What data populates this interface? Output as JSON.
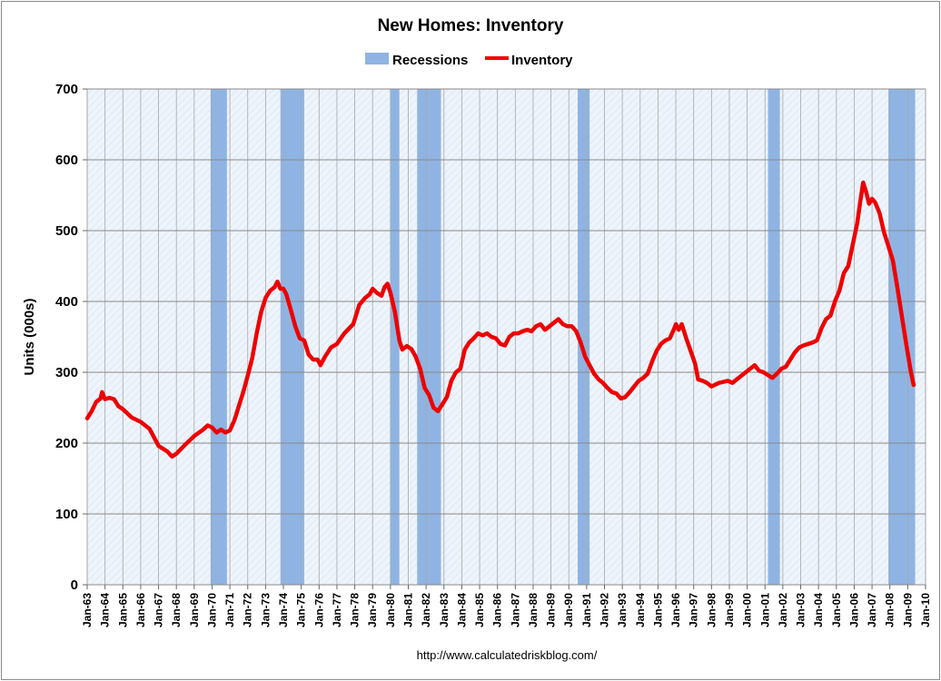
{
  "chart_data": {
    "type": "line",
    "title": "New Homes: Inventory",
    "ylabel": "Units (000s)",
    "xlabel": "",
    "source": "http://www.calculatedriskblog.com/",
    "ylim": [
      0,
      700
    ],
    "yticks": [
      0,
      100,
      200,
      300,
      400,
      500,
      600,
      700
    ],
    "x_start_year": 1963,
    "x_end_year": 2010,
    "xtick_labels": [
      "Jan-63",
      "Jan-64",
      "Jan-65",
      "Jan-66",
      "Jan-67",
      "Jan-68",
      "Jan-69",
      "Jan-70",
      "Jan-71",
      "Jan-72",
      "Jan-73",
      "Jan-74",
      "Jan-75",
      "Jan-76",
      "Jan-77",
      "Jan-78",
      "Jan-79",
      "Jan-80",
      "Jan-81",
      "Jan-82",
      "Jan-83",
      "Jan-84",
      "Jan-85",
      "Jan-86",
      "Jan-87",
      "Jan-88",
      "Jan-89",
      "Jan-90",
      "Jan-91",
      "Jan-92",
      "Jan-93",
      "Jan-94",
      "Jan-95",
      "Jan-96",
      "Jan-97",
      "Jan-98",
      "Jan-99",
      "Jan-00",
      "Jan-01",
      "Jan-02",
      "Jan-03",
      "Jan-04",
      "Jan-05",
      "Jan-06",
      "Jan-07",
      "Jan-08",
      "Jan-09",
      "Jan-10"
    ],
    "grid": true,
    "legend": {
      "placement": "top-center",
      "entries": [
        "Recessions",
        "Inventory"
      ]
    },
    "colors": {
      "inventory": "#ee0000",
      "recession": "#8fb4e3",
      "plot_bg": "#eef4fb",
      "grid": "#a8a8a8"
    },
    "recessions": [
      {
        "start": "1969-12",
        "end": "1970-11"
      },
      {
        "start": "1973-11",
        "end": "1975-03"
      },
      {
        "start": "1980-01",
        "end": "1980-07"
      },
      {
        "start": "1981-07",
        "end": "1982-11"
      },
      {
        "start": "1990-07",
        "end": "1991-03"
      },
      {
        "start": "2001-03",
        "end": "2001-11"
      },
      {
        "start": "2007-12",
        "end": "2009-06"
      }
    ],
    "series": [
      {
        "name": "Inventory",
        "points": [
          [
            "1963-01",
            235
          ],
          [
            "1963-04",
            245
          ],
          [
            "1963-07",
            258
          ],
          [
            "1963-10",
            263
          ],
          [
            "1963-11",
            272
          ],
          [
            "1964-01",
            262
          ],
          [
            "1964-04",
            264
          ],
          [
            "1964-07",
            262
          ],
          [
            "1964-10",
            252
          ],
          [
            "1965-01",
            248
          ],
          [
            "1965-07",
            236
          ],
          [
            "1966-01",
            230
          ],
          [
            "1966-07",
            220
          ],
          [
            "1967-01",
            196
          ],
          [
            "1967-04",
            192
          ],
          [
            "1967-07",
            188
          ],
          [
            "1967-10",
            181
          ],
          [
            "1968-01",
            185
          ],
          [
            "1968-07",
            198
          ],
          [
            "1969-01",
            210
          ],
          [
            "1969-07",
            219
          ],
          [
            "1969-10",
            225
          ],
          [
            "1970-01",
            222
          ],
          [
            "1970-04",
            215
          ],
          [
            "1970-07",
            219
          ],
          [
            "1970-10",
            215
          ],
          [
            "1971-01",
            218
          ],
          [
            "1971-04",
            232
          ],
          [
            "1971-07",
            252
          ],
          [
            "1971-10",
            272
          ],
          [
            "1972-01",
            295
          ],
          [
            "1972-04",
            320
          ],
          [
            "1972-07",
            355
          ],
          [
            "1972-10",
            385
          ],
          [
            "1973-01",
            405
          ],
          [
            "1973-04",
            415
          ],
          [
            "1973-07",
            420
          ],
          [
            "1973-09",
            428
          ],
          [
            "1973-11",
            418
          ],
          [
            "1974-01",
            418
          ],
          [
            "1974-03",
            410
          ],
          [
            "1974-06",
            388
          ],
          [
            "1974-09",
            365
          ],
          [
            "1974-12",
            348
          ],
          [
            "1975-03",
            345
          ],
          [
            "1975-06",
            325
          ],
          [
            "1975-09",
            318
          ],
          [
            "1975-12",
            318
          ],
          [
            "1976-02",
            310
          ],
          [
            "1976-05",
            322
          ],
          [
            "1976-09",
            335
          ],
          [
            "1977-01",
            340
          ],
          [
            "1977-06",
            355
          ],
          [
            "1977-12",
            368
          ],
          [
            "1978-04",
            395
          ],
          [
            "1978-08",
            405
          ],
          [
            "1978-11",
            410
          ],
          [
            "1979-01",
            418
          ],
          [
            "1979-04",
            412
          ],
          [
            "1979-07",
            408
          ],
          [
            "1979-09",
            420
          ],
          [
            "1979-11",
            425
          ],
          [
            "1980-01",
            412
          ],
          [
            "1980-04",
            385
          ],
          [
            "1980-07",
            345
          ],
          [
            "1980-09",
            332
          ],
          [
            "1980-12",
            337
          ],
          [
            "1981-03",
            333
          ],
          [
            "1981-06",
            322
          ],
          [
            "1981-09",
            305
          ],
          [
            "1981-12",
            278
          ],
          [
            "1982-03",
            268
          ],
          [
            "1982-06",
            250
          ],
          [
            "1982-09",
            245
          ],
          [
            "1982-12",
            255
          ],
          [
            "1983-03",
            265
          ],
          [
            "1983-06",
            288
          ],
          [
            "1983-09",
            300
          ],
          [
            "1983-12",
            305
          ],
          [
            "1984-03",
            332
          ],
          [
            "1984-06",
            342
          ],
          [
            "1984-09",
            348
          ],
          [
            "1984-12",
            355
          ],
          [
            "1985-03",
            352
          ],
          [
            "1985-06",
            355
          ],
          [
            "1985-09",
            350
          ],
          [
            "1985-12",
            348
          ],
          [
            "1986-03",
            340
          ],
          [
            "1986-06",
            338
          ],
          [
            "1986-09",
            350
          ],
          [
            "1986-12",
            355
          ],
          [
            "1987-03",
            355
          ],
          [
            "1987-06",
            358
          ],
          [
            "1987-09",
            360
          ],
          [
            "1987-12",
            358
          ],
          [
            "1988-03",
            365
          ],
          [
            "1988-06",
            368
          ],
          [
            "1988-09",
            360
          ],
          [
            "1988-12",
            365
          ],
          [
            "1989-03",
            370
          ],
          [
            "1989-06",
            375
          ],
          [
            "1989-09",
            368
          ],
          [
            "1989-12",
            365
          ],
          [
            "1990-03",
            365
          ],
          [
            "1990-06",
            358
          ],
          [
            "1990-09",
            342
          ],
          [
            "1990-12",
            322
          ],
          [
            "1991-03",
            310
          ],
          [
            "1991-06",
            298
          ],
          [
            "1991-09",
            290
          ],
          [
            "1991-12",
            285
          ],
          [
            "1992-03",
            278
          ],
          [
            "1992-06",
            272
          ],
          [
            "1992-09",
            270
          ],
          [
            "1992-12",
            263
          ],
          [
            "1993-03",
            265
          ],
          [
            "1993-06",
            272
          ],
          [
            "1993-09",
            280
          ],
          [
            "1993-12",
            288
          ],
          [
            "1994-03",
            292
          ],
          [
            "1994-06",
            298
          ],
          [
            "1994-09",
            315
          ],
          [
            "1994-12",
            330
          ],
          [
            "1995-03",
            340
          ],
          [
            "1995-06",
            345
          ],
          [
            "1995-09",
            348
          ],
          [
            "1995-12",
            362
          ],
          [
            "1996-01",
            368
          ],
          [
            "1996-03",
            360
          ],
          [
            "1996-05",
            368
          ],
          [
            "1996-08",
            348
          ],
          [
            "1996-11",
            330
          ],
          [
            "1997-02",
            312
          ],
          [
            "1997-04",
            290
          ],
          [
            "1997-07",
            288
          ],
          [
            "1997-10",
            285
          ],
          [
            "1998-01",
            280
          ],
          [
            "1998-06",
            285
          ],
          [
            "1998-12",
            288
          ],
          [
            "1999-03",
            285
          ],
          [
            "1999-06",
            290
          ],
          [
            "1999-09",
            295
          ],
          [
            "1999-12",
            300
          ],
          [
            "2000-03",
            305
          ],
          [
            "2000-06",
            310
          ],
          [
            "2000-09",
            302
          ],
          [
            "2000-12",
            300
          ],
          [
            "2001-03",
            296
          ],
          [
            "2001-06",
            292
          ],
          [
            "2001-09",
            298
          ],
          [
            "2001-12",
            305
          ],
          [
            "2002-03",
            308
          ],
          [
            "2002-06",
            318
          ],
          [
            "2002-09",
            328
          ],
          [
            "2002-12",
            335
          ],
          [
            "2003-03",
            338
          ],
          [
            "2003-06",
            340
          ],
          [
            "2003-09",
            342
          ],
          [
            "2003-12",
            345
          ],
          [
            "2004-03",
            362
          ],
          [
            "2004-06",
            375
          ],
          [
            "2004-09",
            380
          ],
          [
            "2004-12",
            400
          ],
          [
            "2005-03",
            415
          ],
          [
            "2005-06",
            440
          ],
          [
            "2005-09",
            450
          ],
          [
            "2005-12",
            480
          ],
          [
            "2006-03",
            510
          ],
          [
            "2006-05",
            540
          ],
          [
            "2006-07",
            568
          ],
          [
            "2006-09",
            555
          ],
          [
            "2006-11",
            538
          ],
          [
            "2007-01",
            545
          ],
          [
            "2007-03",
            540
          ],
          [
            "2007-06",
            525
          ],
          [
            "2007-09",
            498
          ],
          [
            "2007-12",
            478
          ],
          [
            "2008-03",
            458
          ],
          [
            "2008-06",
            420
          ],
          [
            "2008-09",
            380
          ],
          [
            "2008-12",
            340
          ],
          [
            "2009-03",
            302
          ],
          [
            "2009-05",
            282
          ]
        ]
      }
    ]
  }
}
